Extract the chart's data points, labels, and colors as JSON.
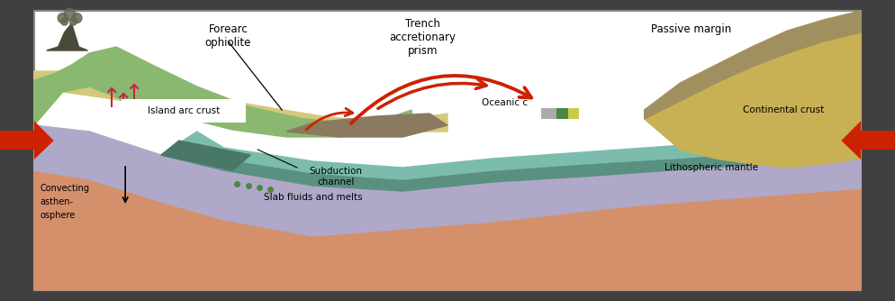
{
  "fig_width": 9.94,
  "fig_height": 3.34,
  "labels": {
    "forearc": "Forearc\nophiolite",
    "trench": "Trench\naccretionary\nprism",
    "passive": "Passive margin",
    "island_arc": "Island arc crust",
    "oceanic": "Oceanic c",
    "continental": "Continental crust",
    "lithospheric": "Lithospheric mantle",
    "convecting_line1": "Convecting",
    "convecting_line2": "asthen-",
    "convecting_line3": "osphere",
    "subduction": "Subduction\nchannel",
    "slab": "Slab fluids and melts"
  },
  "colors": {
    "outer_bg": "#404040",
    "inner_bg": "#ffffff",
    "asthenosphere": "#d4906a",
    "litho_mantle": "#c09070",
    "oceanic_dark": "#5a9080",
    "oceanic_light": "#7cbcac",
    "island_green": "#8ab870",
    "island_yellow": "#d4c87a",
    "continental": "#c8b055",
    "continental_top": "#a09060",
    "subduction_chan": "#4a7868",
    "trench_fill": "#8a7a60",
    "red_arrow": "#cc2200",
    "volcano": "#4a4a3a",
    "smoke": "#666655",
    "lavender": "#b0a8c8",
    "border": "#888888"
  }
}
